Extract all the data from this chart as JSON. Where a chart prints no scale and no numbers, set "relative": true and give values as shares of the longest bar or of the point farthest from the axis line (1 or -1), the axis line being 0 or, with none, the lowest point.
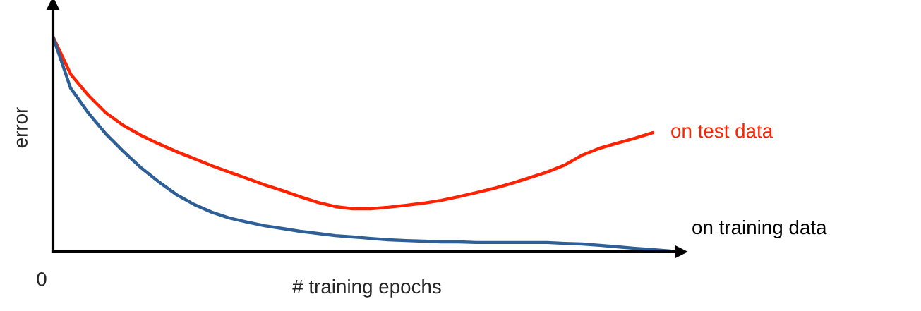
{
  "chart_data": {
    "type": "line",
    "relative": true,
    "xlabel": "# training epochs",
    "ylabel": "error",
    "annotations": [
      "0"
    ],
    "categories": [
      null,
      null,
      null,
      null,
      null,
      null,
      null,
      null,
      null,
      null,
      null,
      null,
      null,
      null,
      null,
      null,
      null,
      null,
      null,
      null,
      null,
      null,
      null,
      null,
      null,
      null,
      null,
      null,
      null,
      null,
      null,
      null,
      null,
      null,
      null,
      null
    ],
    "series": [
      {
        "name": "on test data",
        "color": "#ff2200",
        "values": [
          1.0,
          0.826,
          0.728,
          0.646,
          0.587,
          0.541,
          0.502,
          0.466,
          0.433,
          0.4,
          0.37,
          0.341,
          0.311,
          0.285,
          0.256,
          0.23,
          0.21,
          0.2,
          0.2,
          0.207,
          0.216,
          0.226,
          0.239,
          0.256,
          0.275,
          0.295,
          0.318,
          0.344,
          0.37,
          0.403,
          0.449,
          0.482,
          0.505,
          0.528,
          0.554,
          null
        ]
      },
      {
        "name": "on training data",
        "color": "#2e5f96",
        "values": [
          1.0,
          0.761,
          0.646,
          0.548,
          0.466,
          0.39,
          0.325,
          0.266,
          0.22,
          0.184,
          0.157,
          0.138,
          0.121,
          0.108,
          0.095,
          0.085,
          0.075,
          0.069,
          0.062,
          0.056,
          0.052,
          0.049,
          0.046,
          0.046,
          0.043,
          0.043,
          0.043,
          0.043,
          0.043,
          0.039,
          0.036,
          0.03,
          0.023,
          0.016,
          0.01,
          0.003
        ]
      }
    ]
  }
}
